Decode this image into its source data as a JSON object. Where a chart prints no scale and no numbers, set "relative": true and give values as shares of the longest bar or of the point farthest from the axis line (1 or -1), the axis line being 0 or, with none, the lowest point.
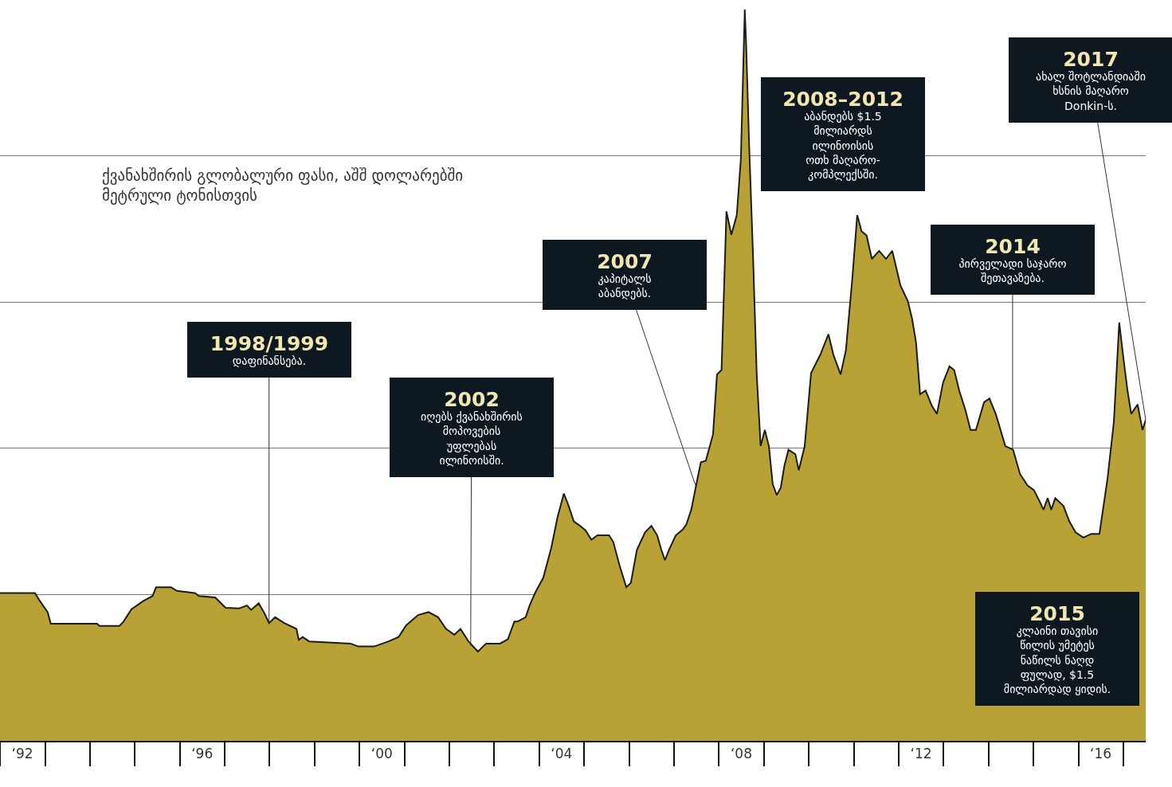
{
  "chart_data": {
    "type": "area",
    "title": "ქვანახშირის გლობალური ფასი, აშშ დოლარებში\nმეტრული ტონისთვის",
    "relative": true,
    "grid": "y",
    "color": "#b9a235",
    "xlim": [
      "1992-01-01",
      "2017-07-01"
    ],
    "xticks": [
      {
        "value": "1992-07-01",
        "label": "‘92"
      },
      {
        "value": "1996-07-01",
        "label": "‘96"
      },
      {
        "value": "2000-07-01",
        "label": "‘00"
      },
      {
        "value": "2004-07-01",
        "label": "‘04"
      },
      {
        "value": "2008-07-01",
        "label": "‘08"
      },
      {
        "value": "2012-07-01",
        "label": "‘12"
      },
      {
        "value": "2016-07-01",
        "label": "‘16"
      }
    ],
    "x": [
      "1992-01-01",
      "1992-10-11",
      "1992-11-21",
      "1993-01-22",
      "1993-02-17",
      "1994-02-28",
      "1994-03-20",
      "1994-08-28",
      "1994-10-01",
      "1994-12-05",
      "1995-03-09",
      "1995-05-25",
      "1995-06-23",
      "1995-10-22",
      "1995-12-09",
      "1996-05-03",
      "1996-06-05",
      "1996-10-15",
      "1997-01-08",
      "1997-04-26",
      "1997-07-01",
      "1997-08-03",
      "1997-10-04",
      "1997-11-21",
      "1997-12-27",
      "1998-02-14",
      "1998-04-29",
      "1998-08-07",
      "1998-08-25",
      "1998-09-27",
      "1998-11-17",
      "1999-10-19",
      "1999-12-23",
      "2000-04-29",
      "2000-08-25",
      "2000-11-14",
      "2001-01-15",
      "2001-04-22",
      "2001-07-15",
      "2001-10-01",
      "2001-12-05",
      "2002-02-10",
      "2002-04-01",
      "2002-06-05",
      "2002-08-21",
      "2002-10-26",
      "2003-02-17",
      "2003-04-22",
      "2003-06-13",
      "2003-07-08",
      "2003-09-13",
      "2003-10-15",
      "2003-11-28",
      "2004-02-03",
      "2004-04-08",
      "2004-05-28",
      "2004-07-19",
      "2004-08-28",
      "2004-10-08",
      "2004-11-28",
      "2005-01-11",
      "2005-02-28",
      "2005-04-19",
      "2005-07-22",
      "2005-08-25",
      "2005-10-15",
      "2005-12-09",
      "2006-01-15",
      "2006-03-05",
      "2006-05-10",
      "2006-07-01",
      "2006-08-17",
      "2006-09-20",
      "2006-10-19",
      "2006-11-21",
      "2007-01-15",
      "2007-03-13",
      "2007-04-11",
      "2007-05-21",
      "2007-07-11",
      "2007-08-07",
      "2007-09-16",
      "2007-11-14",
      "2007-12-16",
      "2008-01-22",
      "2008-03-02",
      "2008-04-11",
      "2008-05-25",
      "2008-06-27",
      "2008-07-29",
      "2008-08-10",
      "2008-09-02",
      "2008-10-04",
      "2008-11-03",
      "2008-12-05",
      "2009-01-08",
      "2009-02-10",
      "2009-03-13",
      "2009-04-15",
      "2009-05-17",
      "2009-06-16",
      "2009-07-19",
      "2009-09-13",
      "2009-10-11",
      "2009-11-28",
      "2010-01-19",
      "2010-04-04",
      "2010-06-09",
      "2010-07-19",
      "2010-09-16",
      "2010-10-29",
      "2010-12-20",
      "2011-01-29",
      "2011-03-05",
      "2011-04-15",
      "2011-05-28",
      "2011-07-26",
      "2011-09-20",
      "2011-11-10",
      "2012-01-15",
      "2012-03-16",
      "2012-04-19",
      "2012-05-21",
      "2012-06-23",
      "2012-08-07",
      "2012-09-27",
      "2012-11-07",
      "2012-12-27",
      "2013-02-17",
      "2013-03-27",
      "2013-05-07",
      "2013-06-27",
      "2013-08-07",
      "2013-09-20",
      "2013-11-25",
      "2014-01-08",
      "2014-02-28",
      "2014-05-17",
      "2014-07-19",
      "2014-09-13",
      "2014-11-14",
      "2015-01-04",
      "2015-02-21",
      "2015-03-23",
      "2015-04-26",
      "2015-05-25",
      "2015-06-27",
      "2015-09-02",
      "2015-10-19",
      "2015-12-09",
      "2016-02-10",
      "2016-04-15",
      "2016-06-20",
      "2016-08-25",
      "2016-10-15",
      "2016-11-28",
      "2017-01-01",
      "2017-02-03",
      "2017-03-05",
      "2017-04-26",
      "2017-06-05",
      "2017-07-01"
    ],
    "values": [
      0.202,
      0.202,
      0.191,
      0.176,
      0.16,
      0.16,
      0.157,
      0.157,
      0.163,
      0.18,
      0.191,
      0.198,
      0.21,
      0.21,
      0.205,
      0.202,
      0.198,
      0.196,
      0.182,
      0.181,
      0.185,
      0.179,
      0.188,
      0.174,
      0.161,
      0.169,
      0.161,
      0.153,
      0.138,
      0.142,
      0.136,
      0.133,
      0.129,
      0.129,
      0.136,
      0.142,
      0.158,
      0.172,
      0.176,
      0.169,
      0.153,
      0.145,
      0.153,
      0.136,
      0.122,
      0.133,
      0.133,
      0.139,
      0.163,
      0.163,
      0.169,
      0.185,
      0.202,
      0.223,
      0.264,
      0.305,
      0.338,
      0.321,
      0.3,
      0.294,
      0.288,
      0.275,
      0.281,
      0.281,
      0.272,
      0.24,
      0.21,
      0.216,
      0.261,
      0.285,
      0.294,
      0.281,
      0.261,
      0.247,
      0.261,
      0.281,
      0.289,
      0.296,
      0.316,
      0.359,
      0.381,
      0.383,
      0.419,
      0.501,
      0.507,
      0.724,
      0.692,
      0.719,
      0.795,
      1,
      0.948,
      0.817,
      0.664,
      0.501,
      0.403,
      0.425,
      0.403,
      0.351,
      0.336,
      0.346,
      0.376,
      0.398,
      0.392,
      0.37,
      0.403,
      0.503,
      0.528,
      0.556,
      0.528,
      0.501,
      0.534,
      0.632,
      0.719,
      0.697,
      0.691,
      0.659,
      0.67,
      0.659,
      0.67,
      0.623,
      0.601,
      0.577,
      0.545,
      0.474,
      0.479,
      0.458,
      0.447,
      0.49,
      0.512,
      0.507,
      0.479,
      0.452,
      0.425,
      0.425,
      0.463,
      0.468,
      0.447,
      0.403,
      0.398,
      0.365,
      0.349,
      0.343,
      0.327,
      0.316,
      0.332,
      0.316,
      0.332,
      0.321,
      0.3,
      0.285,
      0.278,
      0.283,
      0.283,
      0.359,
      0.436,
      0.572,
      0.523,
      0.479,
      0.447,
      0.46,
      0.425,
      0.439
    ],
    "annotations": [
      {
        "text": "1998/1999\nდაფინანსება.",
        "x": "1997-12-27",
        "y": 0.161
      },
      {
        "text": "2002\nიღებს ქვანახშირის\nმოპოვების\nუფლებას\nილინოისში.",
        "x": "2002-06-23",
        "y": 0.13
      },
      {
        "text": "2007\nკაპიტალს\nაბანდებს.",
        "x": "2007-06-23",
        "y": 0.35
      },
      "2008–2012\nაბანდებს $1.5\nმილიარდს\nილინოისის\nოთხ მაღარო-\nკომპლექსში.",
      {
        "text": "2014\nპირველადი საჯარო\nშეთავაზება.",
        "x": "2014-07-15",
        "y": 0.398
      },
      "2015\nკლაინი თავისი\nწილის უმეტეს\nნაწილს ნაღდ\nფულად, $1.5\nმილიარდად ყიდის.",
      {
        "text": "2017\nახალ შოტლანდიაში\nხსნის მაღარო\nDonkin-ს.",
        "x": "2017-07-01",
        "y": 0.439
      }
    ]
  }
}
